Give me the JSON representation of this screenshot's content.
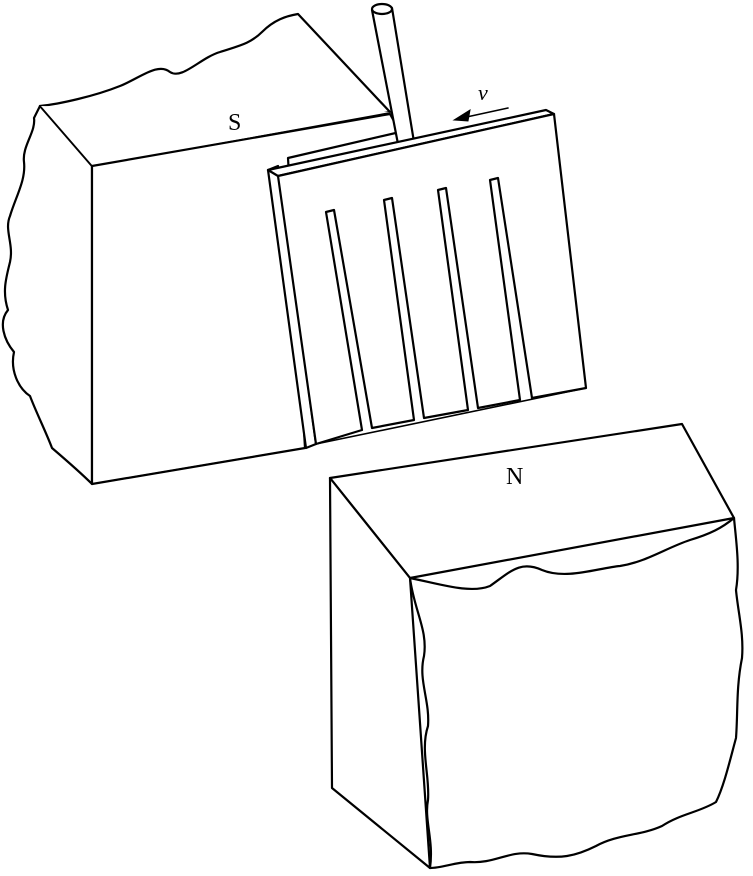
{
  "diagram": {
    "labels": {
      "south_pole": "S",
      "north_pole": "N",
      "velocity": "v"
    },
    "colors": {
      "stroke": "#000000",
      "background": "#ffffff"
    },
    "slot_count": 4
  }
}
